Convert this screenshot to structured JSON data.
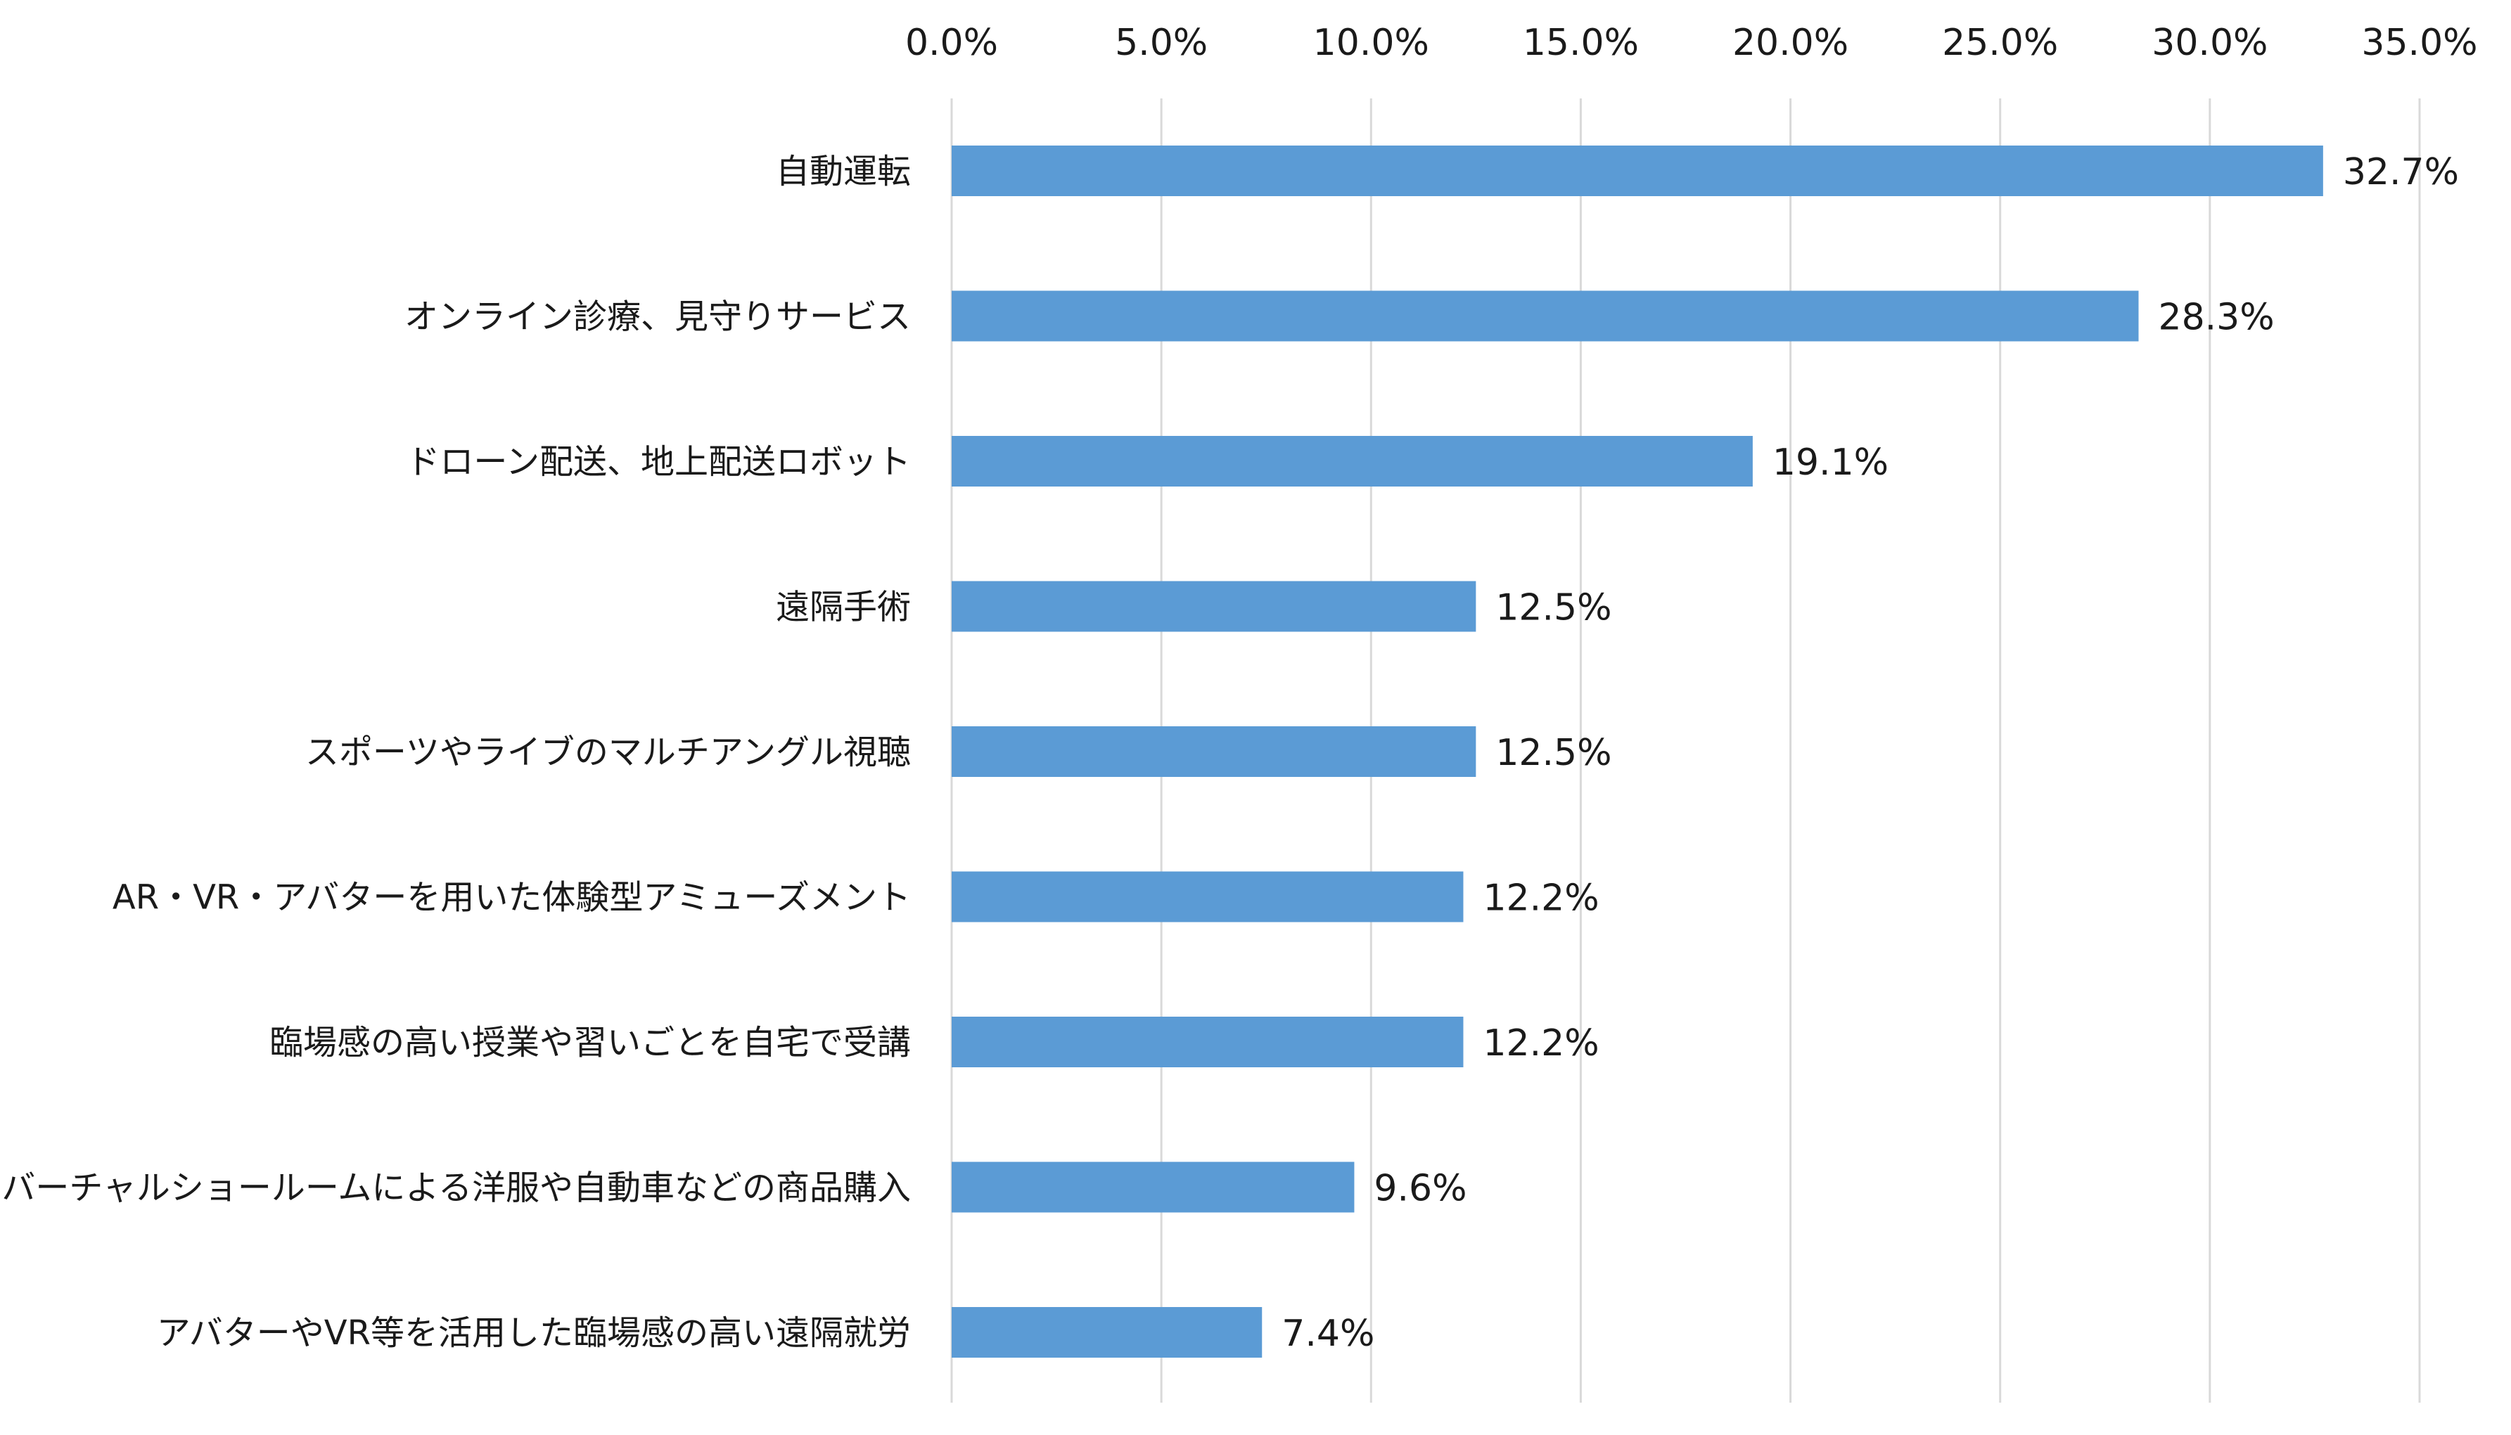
{
  "chart_data": {
    "type": "bar",
    "orientation": "horizontal",
    "categories": [
      "自動運転",
      "オンライン診療、見守りサービス",
      "ドローン配送、地上配送ロボット",
      "遠隔手術",
      "スポーツやライブのマルチアングル視聴",
      "AR・VR・アバターを用いた体験型アミューズメント",
      "臨場感の高い授業や習いごとを自宅で受講",
      "バーチャルショールームによる洋服や自動車などの商品購入",
      "アバターやVR等を活用した臨場感の高い遠隔就労"
    ],
    "values": [
      32.7,
      28.3,
      19.1,
      12.5,
      12.5,
      12.2,
      12.2,
      9.6,
      7.4
    ],
    "value_labels": [
      "32.7%",
      "28.3%",
      "19.1%",
      "12.5%",
      "12.5%",
      "12.2%",
      "12.2%",
      "9.6%",
      "7.4%"
    ],
    "x_ticks": [
      "0.0%",
      "5.0%",
      "10.0%",
      "15.0%",
      "20.0%",
      "25.0%",
      "30.0%",
      "35.0%"
    ],
    "xlim": [
      0,
      35
    ],
    "x_axis_position": "top",
    "grid": true,
    "legend": false,
    "bar_color": "#5b9bd5",
    "title": "",
    "xlabel": "",
    "ylabel": ""
  }
}
